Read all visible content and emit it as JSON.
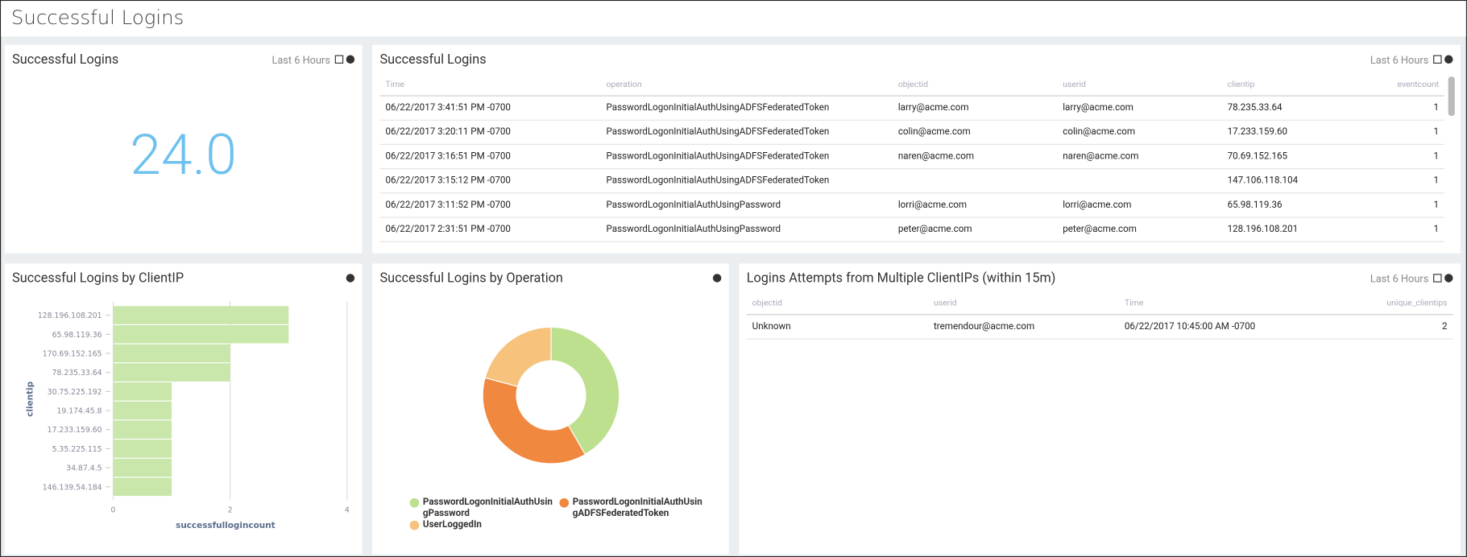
{
  "header": {
    "title": "Successful Logins"
  },
  "single_value": {
    "title": "Successful Logins",
    "time_range": "Last 6 Hours",
    "value": "24.0"
  },
  "events_table": {
    "title": "Successful Logins",
    "time_range": "Last 6 Hours",
    "columns": [
      "Time",
      "operation",
      "objectid",
      "userid",
      "clientip",
      "eventcount"
    ],
    "rows": [
      [
        "06/22/2017 3:41:51 PM -0700",
        "PasswordLogonInitialAuthUsingADFSFederatedToken",
        "larry@acme.com",
        "larry@acme.com",
        "78.235.33.64",
        1
      ],
      [
        "06/22/2017 3:20:11 PM -0700",
        "PasswordLogonInitialAuthUsingADFSFederatedToken",
        "colin@acme.com",
        "colin@acme.com",
        "17.233.159.60",
        1
      ],
      [
        "06/22/2017 3:16:51 PM -0700",
        "PasswordLogonInitialAuthUsingADFSFederatedToken",
        "naren@acme.com",
        "naren@acme.com",
        "70.69.152.165",
        1
      ],
      [
        "06/22/2017 3:15:12 PM -0700",
        "PasswordLogonInitialAuthUsingADFSFederatedToken",
        null,
        null,
        "147.106.118.104",
        1
      ],
      [
        "06/22/2017 3:11:52 PM -0700",
        "PasswordLogonInitialAuthUsingPassword",
        "lorri@acme.com",
        "lorri@acme.com",
        "65.98.119.36",
        1
      ],
      [
        "06/22/2017 2:31:51 PM -0700",
        "PasswordLogonInitialAuthUsingPassword",
        "peter@acme.com",
        "peter@acme.com",
        "128.196.108.201",
        1
      ]
    ]
  },
  "chart_data": [
    {
      "type": "bar",
      "orientation": "horizontal",
      "title": "Successful Logins by ClientIP",
      "categories": [
        "128.196.108.201",
        "65.98.119.36",
        "170.69.152.165",
        "78.235.33.64",
        "30.75.225.192",
        "19.174.45.8",
        "17.233.159.60",
        "5.35.225.115",
        "34.87.4.5",
        "146.139.54.184"
      ],
      "values": [
        3,
        3,
        2,
        2,
        1,
        1,
        1,
        1,
        1,
        1
      ],
      "color": "#c9e6ab",
      "xlim": [
        0,
        4
      ],
      "xticks": [
        0,
        2,
        4
      ],
      "xlabel": "successfullogincount",
      "ylabel": "clientip",
      "grid": true
    },
    {
      "type": "pie",
      "donut": true,
      "title": "Successful Logins by Operation",
      "categories": [
        "PasswordLogonInitialAuthUsingPassword",
        "PasswordLogonInitialAuthUsingADFSFederatedToken",
        "UserLoggedIn"
      ],
      "values": [
        10,
        9,
        5
      ],
      "colors": [
        "#bde08f",
        "#f0883f",
        "#f6c27c"
      ]
    }
  ],
  "multi_ip_table": {
    "title": "Logins Attempts from Multiple ClientIPs (within 15m)",
    "time_range": "Last 6 Hours",
    "columns": [
      "objectid",
      "userid",
      "Time",
      "unique_clientips"
    ],
    "rows": [
      [
        "Unknown",
        "tremendour@acme.com",
        "06/22/2017 10:45:00 AM -0700",
        2
      ]
    ]
  }
}
